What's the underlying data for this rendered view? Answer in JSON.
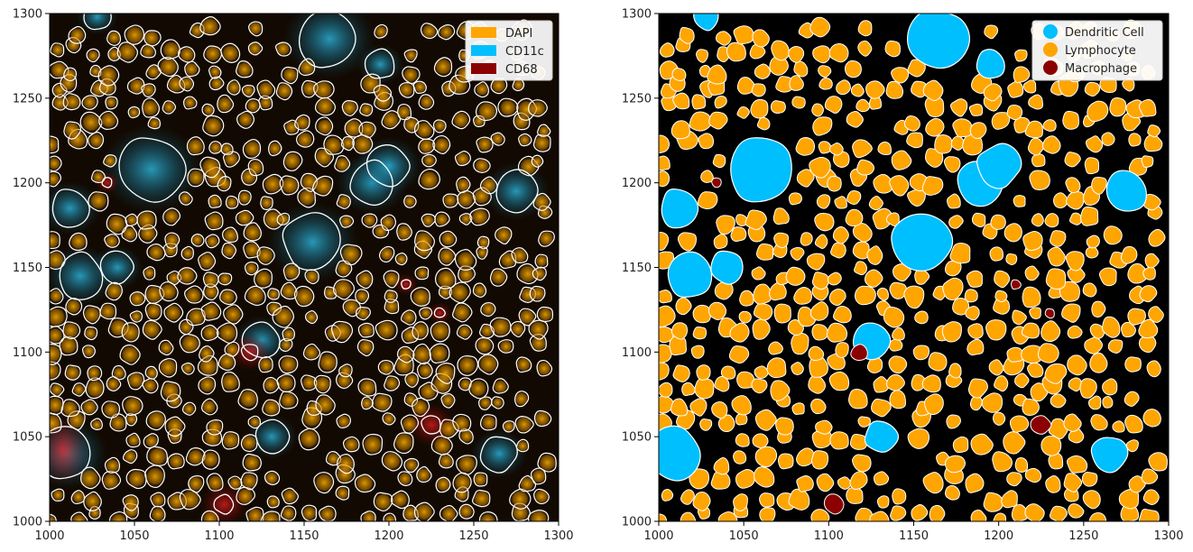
{
  "chart_data": [
    {
      "type": "image",
      "title": "",
      "xlabel": "",
      "ylabel": "",
      "xlim": [
        1000,
        1300
      ],
      "ylim": [
        1000,
        1300
      ],
      "xticks": [
        "1000",
        "1050",
        "1100",
        "1150",
        "1200",
        "1250",
        "1300"
      ],
      "yticks": [
        "1000",
        "1050",
        "1100",
        "1150",
        "1200",
        "1250",
        "1300"
      ],
      "background": "#000000",
      "grid": false,
      "legend_position": "top-right",
      "legend": [
        {
          "label": "DAPI",
          "color": "#ffa500",
          "marker": "square"
        },
        {
          "label": "CD11c",
          "color": "#00bfff",
          "marker": "square"
        },
        {
          "label": "CD68",
          "color": "#8b0000",
          "marker": "square"
        }
      ]
    },
    {
      "type": "image",
      "title": "",
      "xlabel": "",
      "ylabel": "",
      "xlim": [
        1000,
        1300
      ],
      "ylim": [
        1000,
        1300
      ],
      "xticks": [
        "1000",
        "1050",
        "1100",
        "1150",
        "1200",
        "1250",
        "1300"
      ],
      "yticks": [
        "1000",
        "1050",
        "1100",
        "1150",
        "1200",
        "1250",
        "1300"
      ],
      "background": "#000000",
      "grid": false,
      "legend_position": "top-right",
      "legend": [
        {
          "label": "Dendritic Cell",
          "color": "#00bfff",
          "marker": "circle"
        },
        {
          "label": "Lymphocyte",
          "color": "#ffa500",
          "marker": "circle"
        },
        {
          "label": "Macrophage",
          "color": "#8b0000",
          "marker": "circle"
        }
      ],
      "dendritic_cells": [
        {
          "x": 1060,
          "y": 1208,
          "r": 20
        },
        {
          "x": 1165,
          "y": 1285,
          "r": 18
        },
        {
          "x": 1190,
          "y": 1200,
          "r": 14
        },
        {
          "x": 1200,
          "y": 1210,
          "r": 13
        },
        {
          "x": 1155,
          "y": 1165,
          "r": 18
        },
        {
          "x": 1275,
          "y": 1195,
          "r": 13
        },
        {
          "x": 1012,
          "y": 1185,
          "r": 12
        },
        {
          "x": 1018,
          "y": 1145,
          "r": 14
        },
        {
          "x": 1040,
          "y": 1150,
          "r": 10
        },
        {
          "x": 1125,
          "y": 1107,
          "r": 11
        },
        {
          "x": 1010,
          "y": 1040,
          "r": 16
        },
        {
          "x": 1131,
          "y": 1050,
          "r": 10
        },
        {
          "x": 1265,
          "y": 1040,
          "r": 11
        },
        {
          "x": 1195,
          "y": 1270,
          "r": 9
        },
        {
          "x": 1028,
          "y": 1298,
          "r": 8
        }
      ],
      "macrophages": [
        {
          "x": 1103,
          "y": 1010,
          "r": 6
        },
        {
          "x": 1225,
          "y": 1057,
          "r": 6
        },
        {
          "x": 1118,
          "y": 1100,
          "r": 5
        },
        {
          "x": 1230,
          "y": 1123,
          "r": 3
        },
        {
          "x": 1210,
          "y": 1140,
          "r": 3
        },
        {
          "x": 1034,
          "y": 1200,
          "r": 3
        }
      ]
    }
  ]
}
